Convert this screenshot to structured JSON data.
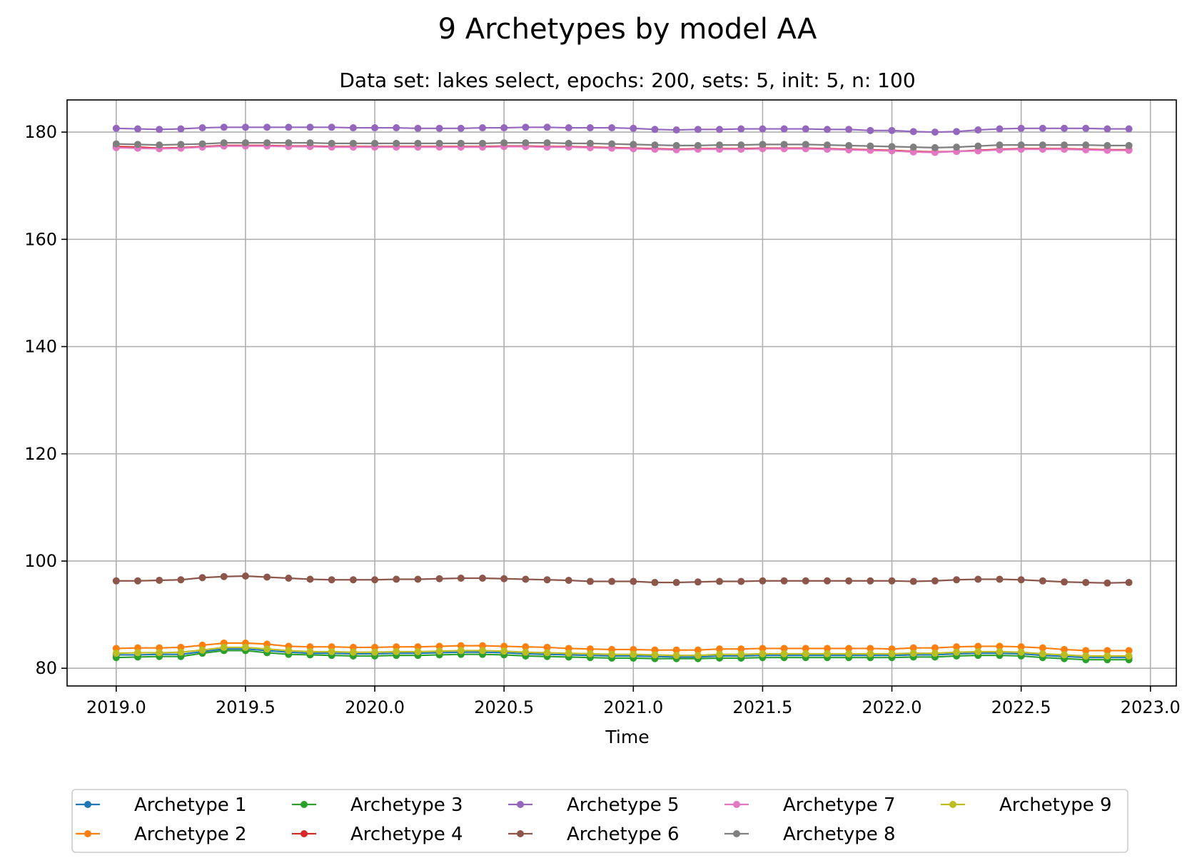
{
  "chart_data": {
    "type": "line",
    "title": "9 Archetypes by model AA",
    "subtitle": "Data set: lakes select, epochs: 200, sets: 5, init: 5, n: 100",
    "xlabel": "Time",
    "ylabel": "",
    "xlim": [
      2018.81,
      2023.1
    ],
    "ylim": [
      76.7,
      186.0
    ],
    "xticks": [
      2019.0,
      2019.5,
      2020.0,
      2020.5,
      2021.0,
      2021.5,
      2022.0,
      2022.5,
      2023.0
    ],
    "xtick_labels": [
      "2019.0",
      "2019.5",
      "2020.0",
      "2020.5",
      "2021.0",
      "2021.5",
      "2022.0",
      "2022.5",
      "2023.0"
    ],
    "yticks": [
      80,
      100,
      120,
      140,
      160,
      180
    ],
    "ytick_labels": [
      "80",
      "100",
      "120",
      "140",
      "160",
      "180"
    ],
    "grid": true,
    "legend": {
      "placement": "bottom-center",
      "columns": 5
    },
    "x": [
      2019.0,
      2019.0833,
      2019.1667,
      2019.25,
      2019.3333,
      2019.4167,
      2019.5,
      2019.5833,
      2019.6667,
      2019.75,
      2019.8333,
      2019.9167,
      2020.0,
      2020.0833,
      2020.1667,
      2020.25,
      2020.3333,
      2020.4167,
      2020.5,
      2020.5833,
      2020.6667,
      2020.75,
      2020.8333,
      2020.9167,
      2021.0,
      2021.0833,
      2021.1667,
      2021.25,
      2021.3333,
      2021.4167,
      2021.5,
      2021.5833,
      2021.6667,
      2021.75,
      2021.8333,
      2021.9167,
      2022.0,
      2022.0833,
      2022.1667,
      2022.25,
      2022.3333,
      2022.4167,
      2022.5,
      2022.5833,
      2022.6667,
      2022.75,
      2022.8333,
      2022.9167
    ],
    "series": [
      {
        "name": "Archetype 1",
        "color": "#1f77b4",
        "values": [
          82.5,
          82.5,
          82.6,
          82.6,
          83.1,
          83.6,
          83.6,
          83.3,
          83.0,
          82.8,
          82.8,
          82.7,
          82.7,
          82.8,
          82.8,
          82.9,
          83.0,
          83.0,
          82.9,
          82.7,
          82.6,
          82.5,
          82.4,
          82.3,
          82.3,
          82.2,
          82.1,
          82.1,
          82.3,
          82.3,
          82.4,
          82.4,
          82.4,
          82.4,
          82.4,
          82.4,
          82.4,
          82.5,
          82.5,
          82.7,
          82.8,
          82.8,
          82.7,
          82.4,
          82.2,
          82.0,
          82.0,
          82.0
        ]
      },
      {
        "name": "Archetype 2",
        "color": "#ff7f0e",
        "values": [
          83.7,
          83.8,
          83.8,
          83.9,
          84.3,
          84.7,
          84.7,
          84.5,
          84.1,
          84.0,
          84.0,
          83.9,
          83.9,
          84.0,
          84.0,
          84.1,
          84.2,
          84.2,
          84.1,
          84.0,
          83.9,
          83.7,
          83.6,
          83.5,
          83.5,
          83.4,
          83.4,
          83.4,
          83.6,
          83.6,
          83.7,
          83.7,
          83.7,
          83.7,
          83.7,
          83.7,
          83.6,
          83.8,
          83.8,
          84.0,
          84.1,
          84.1,
          84.0,
          83.8,
          83.5,
          83.3,
          83.3,
          83.3
        ]
      },
      {
        "name": "Archetype 3",
        "color": "#2ca02c",
        "values": [
          82.0,
          82.1,
          82.2,
          82.2,
          82.8,
          83.3,
          83.3,
          82.9,
          82.6,
          82.5,
          82.4,
          82.3,
          82.3,
          82.4,
          82.4,
          82.5,
          82.6,
          82.6,
          82.5,
          82.3,
          82.2,
          82.1,
          82.0,
          81.9,
          81.9,
          81.8,
          81.8,
          81.8,
          81.9,
          81.9,
          82.0,
          82.0,
          82.0,
          82.0,
          82.0,
          82.0,
          82.0,
          82.1,
          82.1,
          82.3,
          82.4,
          82.4,
          82.3,
          82.0,
          81.8,
          81.6,
          81.6,
          81.6
        ]
      },
      {
        "name": "Archetype 4",
        "color": "#d62728",
        "values": [
          177.3,
          177.2,
          177.0,
          177.1,
          177.3,
          177.5,
          177.5,
          177.5,
          177.4,
          177.4,
          177.3,
          177.3,
          177.3,
          177.3,
          177.3,
          177.3,
          177.3,
          177.3,
          177.4,
          177.4,
          177.3,
          177.3,
          177.2,
          177.1,
          177.0,
          176.9,
          176.8,
          176.9,
          176.9,
          176.9,
          177.0,
          177.0,
          177.0,
          176.9,
          176.8,
          176.7,
          176.6,
          176.4,
          176.3,
          176.4,
          176.6,
          176.8,
          176.9,
          176.9,
          176.9,
          176.8,
          176.7,
          176.7
        ]
      },
      {
        "name": "Archetype 5",
        "color": "#9467bd",
        "values": [
          180.7,
          180.6,
          180.5,
          180.6,
          180.8,
          180.9,
          180.9,
          180.9,
          180.9,
          180.9,
          180.9,
          180.8,
          180.8,
          180.8,
          180.7,
          180.7,
          180.7,
          180.8,
          180.8,
          180.9,
          180.9,
          180.8,
          180.8,
          180.8,
          180.7,
          180.5,
          180.4,
          180.5,
          180.5,
          180.6,
          180.6,
          180.6,
          180.6,
          180.5,
          180.5,
          180.3,
          180.3,
          180.1,
          180.0,
          180.1,
          180.4,
          180.6,
          180.7,
          180.7,
          180.7,
          180.7,
          180.6,
          180.6
        ]
      },
      {
        "name": "Archetype 6",
        "color": "#8c564b",
        "values": [
          96.3,
          96.3,
          96.4,
          96.5,
          96.9,
          97.1,
          97.2,
          97.0,
          96.8,
          96.6,
          96.5,
          96.5,
          96.5,
          96.6,
          96.6,
          96.7,
          96.8,
          96.8,
          96.7,
          96.6,
          96.5,
          96.4,
          96.2,
          96.2,
          96.2,
          96.0,
          96.0,
          96.1,
          96.2,
          96.2,
          96.3,
          96.3,
          96.3,
          96.3,
          96.3,
          96.3,
          96.3,
          96.2,
          96.3,
          96.5,
          96.6,
          96.6,
          96.5,
          96.3,
          96.1,
          96.0,
          95.9,
          96.0
        ]
      },
      {
        "name": "Archetype 7",
        "color": "#e377c2",
        "values": [
          177.1,
          177.0,
          176.9,
          177.0,
          177.2,
          177.4,
          177.4,
          177.4,
          177.3,
          177.3,
          177.2,
          177.2,
          177.2,
          177.2,
          177.2,
          177.2,
          177.2,
          177.2,
          177.3,
          177.3,
          177.2,
          177.2,
          177.1,
          177.0,
          176.9,
          176.8,
          176.7,
          176.8,
          176.8,
          176.8,
          176.9,
          176.9,
          176.9,
          176.8,
          176.7,
          176.6,
          176.5,
          176.3,
          176.2,
          176.4,
          176.5,
          176.7,
          176.8,
          176.8,
          176.8,
          176.7,
          176.6,
          176.6
        ]
      },
      {
        "name": "Archetype 8",
        "color": "#7f7f7f",
        "values": [
          177.8,
          177.7,
          177.6,
          177.7,
          177.8,
          178.0,
          178.0,
          178.0,
          178.0,
          178.0,
          177.9,
          177.9,
          177.9,
          177.9,
          177.9,
          177.9,
          177.9,
          177.9,
          178.0,
          178.0,
          178.0,
          177.9,
          177.9,
          177.8,
          177.7,
          177.6,
          177.5,
          177.5,
          177.6,
          177.6,
          177.7,
          177.7,
          177.7,
          177.6,
          177.5,
          177.4,
          177.3,
          177.2,
          177.1,
          177.2,
          177.4,
          177.6,
          177.6,
          177.6,
          177.6,
          177.6,
          177.5,
          177.5
        ]
      },
      {
        "name": "Archetype 9",
        "color": "#bcbd22",
        "values": [
          82.8,
          82.9,
          82.9,
          83.0,
          83.4,
          83.9,
          83.9,
          83.6,
          83.3,
          83.1,
          83.1,
          83.0,
          83.0,
          83.1,
          83.1,
          83.2,
          83.3,
          83.3,
          83.2,
          83.0,
          82.9,
          82.8,
          82.7,
          82.6,
          82.6,
          82.5,
          82.4,
          82.4,
          82.6,
          82.6,
          82.7,
          82.7,
          82.7,
          82.7,
          82.7,
          82.7,
          82.7,
          82.8,
          82.8,
          83.0,
          83.1,
          83.1,
          83.0,
          82.7,
          82.5,
          82.3,
          82.3,
          82.3
        ]
      }
    ]
  }
}
